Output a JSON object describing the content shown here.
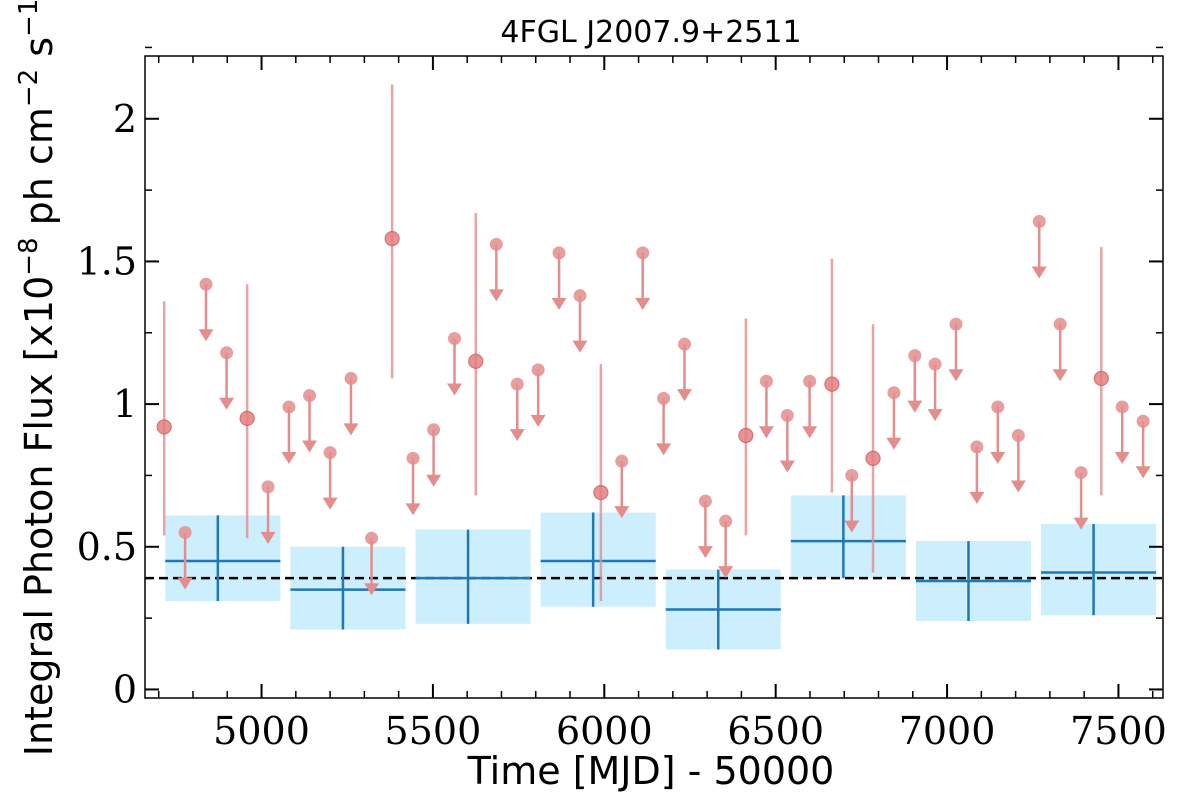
{
  "chart_data": {
    "type": "scatter",
    "title": "4FGL J2007.9+2511",
    "xlabel": "Time [MJD] - 50000",
    "ylabel_main": "Integral Photon Flux [x10",
    "ylabel_exp1": "−8",
    "ylabel_mid": " ph cm",
    "ylabel_exp2": "−2",
    "ylabel_s": " s",
    "ylabel_exp3": "−1",
    "ylabel_end": "]",
    "xlim": [
      4660,
      7630
    ],
    "ylim": [
      -0.03,
      2.22
    ],
    "x_ticks": [
      5000,
      5500,
      6000,
      6500,
      7000,
      7500
    ],
    "y_ticks": [
      0,
      0.5,
      1,
      1.5,
      2
    ],
    "x_tick_labels": [
      "5000",
      "5500",
      "6000",
      "6500",
      "7000",
      "7500"
    ],
    "y_tick_labels": [
      "0",
      "0.5",
      "1",
      "1.5",
      "2"
    ],
    "average_flux": 0.39,
    "colors": {
      "monthly": "#e38d8d",
      "yearly_line": "#1f77b4",
      "yearly_band": "#cdeefc",
      "average": "#000000"
    },
    "monthly_detections": [
      {
        "x": 4716,
        "y": 0.92,
        "ylo": 0.54,
        "yhi": 1.36
      },
      {
        "x": 4958,
        "y": 0.95,
        "ylo": 0.53,
        "yhi": 1.42
      },
      {
        "x": 5381,
        "y": 1.58,
        "ylo": 1.09,
        "yhi": 2.12
      },
      {
        "x": 5625,
        "y": 1.15,
        "ylo": 0.68,
        "yhi": 1.67
      },
      {
        "x": 5990,
        "y": 0.69,
        "ylo": 0.31,
        "yhi": 1.14
      },
      {
        "x": 6413,
        "y": 0.89,
        "ylo": 0.54,
        "yhi": 1.3
      },
      {
        "x": 6664,
        "y": 1.07,
        "ylo": 0.69,
        "yhi": 1.51
      },
      {
        "x": 6784,
        "y": 0.81,
        "ylo": 0.41,
        "yhi": 1.28
      },
      {
        "x": 7450,
        "y": 1.09,
        "ylo": 0.68,
        "yhi": 1.55
      }
    ],
    "monthly_upper_limits": [
      {
        "x": 4777,
        "y": 0.55
      },
      {
        "x": 4838,
        "y": 1.42
      },
      {
        "x": 4898,
        "y": 1.18
      },
      {
        "x": 5019,
        "y": 0.71
      },
      {
        "x": 5080,
        "y": 0.99
      },
      {
        "x": 5140,
        "y": 1.03
      },
      {
        "x": 5200,
        "y": 0.83
      },
      {
        "x": 5261,
        "y": 1.09
      },
      {
        "x": 5321,
        "y": 0.53
      },
      {
        "x": 5442,
        "y": 0.81
      },
      {
        "x": 5502,
        "y": 0.91
      },
      {
        "x": 5563,
        "y": 1.23
      },
      {
        "x": 5685,
        "y": 1.56
      },
      {
        "x": 5746,
        "y": 1.07
      },
      {
        "x": 5807,
        "y": 1.12
      },
      {
        "x": 5868,
        "y": 1.53
      },
      {
        "x": 5929,
        "y": 1.38
      },
      {
        "x": 6051,
        "y": 0.8
      },
      {
        "x": 6112,
        "y": 1.53
      },
      {
        "x": 6173,
        "y": 1.02
      },
      {
        "x": 6234,
        "y": 1.21
      },
      {
        "x": 6295,
        "y": 0.66
      },
      {
        "x": 6354,
        "y": 0.59
      },
      {
        "x": 6473,
        "y": 1.08
      },
      {
        "x": 6534,
        "y": 0.96
      },
      {
        "x": 6599,
        "y": 1.08
      },
      {
        "x": 6722,
        "y": 0.75
      },
      {
        "x": 6845,
        "y": 1.04
      },
      {
        "x": 6906,
        "y": 1.17
      },
      {
        "x": 6965,
        "y": 1.14
      },
      {
        "x": 7026,
        "y": 1.28
      },
      {
        "x": 7087,
        "y": 0.85
      },
      {
        "x": 7148,
        "y": 0.99
      },
      {
        "x": 7208,
        "y": 0.89
      },
      {
        "x": 7269,
        "y": 1.64
      },
      {
        "x": 7330,
        "y": 1.28
      },
      {
        "x": 7391,
        "y": 0.76
      },
      {
        "x": 7511,
        "y": 0.99
      },
      {
        "x": 7572,
        "y": 0.94
      }
    ],
    "yearly_bins": [
      {
        "x0": 4690,
        "x1": 5055,
        "y": 0.45,
        "ylo": 0.31,
        "yhi": 0.61
      },
      {
        "x0": 5055,
        "x1": 5420,
        "y": 0.35,
        "ylo": 0.21,
        "yhi": 0.5
      },
      {
        "x0": 5420,
        "x1": 5785,
        "y": 0.39,
        "ylo": 0.23,
        "yhi": 0.56
      },
      {
        "x0": 5785,
        "x1": 6150,
        "y": 0.45,
        "ylo": 0.29,
        "yhi": 0.62
      },
      {
        "x0": 6150,
        "x1": 6515,
        "y": 0.28,
        "ylo": 0.14,
        "yhi": 0.42
      },
      {
        "x0": 6515,
        "x1": 6880,
        "y": 0.52,
        "ylo": 0.39,
        "yhi": 0.68
      },
      {
        "x0": 6880,
        "x1": 7245,
        "y": 0.38,
        "ylo": 0.24,
        "yhi": 0.52
      },
      {
        "x0": 7245,
        "x1": 7610,
        "y": 0.41,
        "ylo": 0.26,
        "yhi": 0.58
      }
    ]
  }
}
